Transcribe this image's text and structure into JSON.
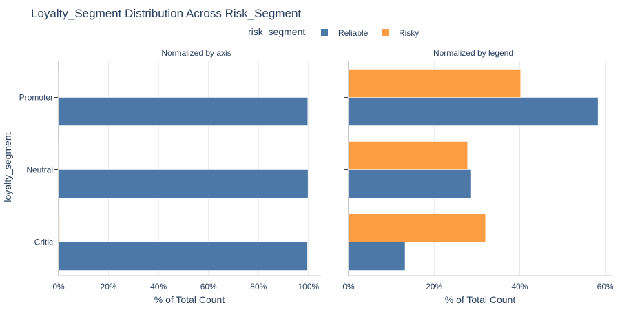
{
  "chart_data": {
    "type": "bar",
    "orientation": "horizontal",
    "title": "Loyalty_Segment Distribution Across Risk_Segment",
    "legend": {
      "title": "risk_segment",
      "placement": "top-center",
      "entries": [
        {
          "name": "Reliable",
          "color": "#4c78a8"
        },
        {
          "name": "Risky",
          "color": "#fd9e44"
        }
      ]
    },
    "ylabel": "loyalty_segment",
    "categories": [
      "Promoter",
      "Neutral",
      "Critic"
    ],
    "panels": [
      {
        "title": "Normalized by axis",
        "xlabel": "% of Total Count",
        "xlim": [
          0,
          105
        ],
        "xticks": [
          0,
          20,
          40,
          60,
          80,
          100
        ],
        "xtick_labels": [
          "0%",
          "20%",
          "40%",
          "60%",
          "80%",
          "100%"
        ],
        "series": [
          {
            "name": "Reliable",
            "values": [
              99.7,
              99.8,
              99.6
            ]
          },
          {
            "name": "Risky",
            "values": [
              0.3,
              0.2,
              0.4
            ]
          }
        ]
      },
      {
        "title": "Normalized by legend",
        "xlabel": "% of Total Count",
        "xlim": [
          0,
          61.5
        ],
        "xticks": [
          0,
          20,
          40,
          60
        ],
        "xtick_labels": [
          "0%",
          "20%",
          "40%",
          "60%"
        ],
        "series": [
          {
            "name": "Reliable",
            "values": [
              58.3,
              28.5,
              13.2
            ]
          },
          {
            "name": "Risky",
            "values": [
              40.2,
              27.8,
              32.0
            ]
          }
        ]
      }
    ]
  }
}
